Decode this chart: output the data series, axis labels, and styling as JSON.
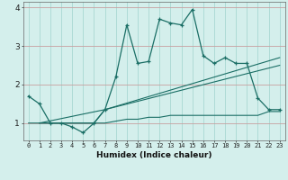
{
  "xlabel": "Humidex (Indice chaleur)",
  "bg_color": "#d4efec",
  "grid_color": "#a8d8d2",
  "line_color": "#1a6e65",
  "xlim": [
    -0.5,
    23.5
  ],
  "ylim": [
    0.55,
    4.15
  ],
  "xticks": [
    0,
    1,
    2,
    3,
    4,
    5,
    6,
    7,
    8,
    9,
    10,
    11,
    12,
    13,
    14,
    15,
    16,
    17,
    18,
    19,
    20,
    21,
    22,
    23
  ],
  "yticks": [
    1,
    2,
    3,
    4
  ],
  "line1_x": [
    0,
    1,
    2,
    3,
    4,
    5,
    6,
    7,
    8,
    9,
    10,
    11,
    12,
    13,
    14,
    15,
    16,
    17,
    18,
    19,
    20,
    21,
    22,
    23
  ],
  "line1_y": [
    1.7,
    1.5,
    1.0,
    1.0,
    0.9,
    0.75,
    1.0,
    1.35,
    2.2,
    3.55,
    2.55,
    2.6,
    3.7,
    3.6,
    3.55,
    3.95,
    2.75,
    2.55,
    2.7,
    2.55,
    2.55,
    1.65,
    1.35,
    1.35
  ],
  "line2_x": [
    0,
    1,
    2,
    3,
    4,
    5,
    6,
    7,
    8,
    9,
    10,
    11,
    12,
    13,
    14,
    15,
    16,
    17,
    18,
    19,
    20,
    21,
    22,
    23
  ],
  "line2_y": [
    1.0,
    1.0,
    1.0,
    1.0,
    1.0,
    1.0,
    1.0,
    1.0,
    1.05,
    1.1,
    1.1,
    1.15,
    1.15,
    1.2,
    1.2,
    1.2,
    1.2,
    1.2,
    1.2,
    1.2,
    1.2,
    1.2,
    1.3,
    1.3
  ],
  "line3_x": [
    1,
    6,
    7,
    23
  ],
  "line3_y": [
    1.0,
    1.0,
    1.35,
    2.7
  ],
  "line4_x": [
    1,
    7,
    23
  ],
  "line4_y": [
    1.0,
    1.35,
    2.5
  ]
}
